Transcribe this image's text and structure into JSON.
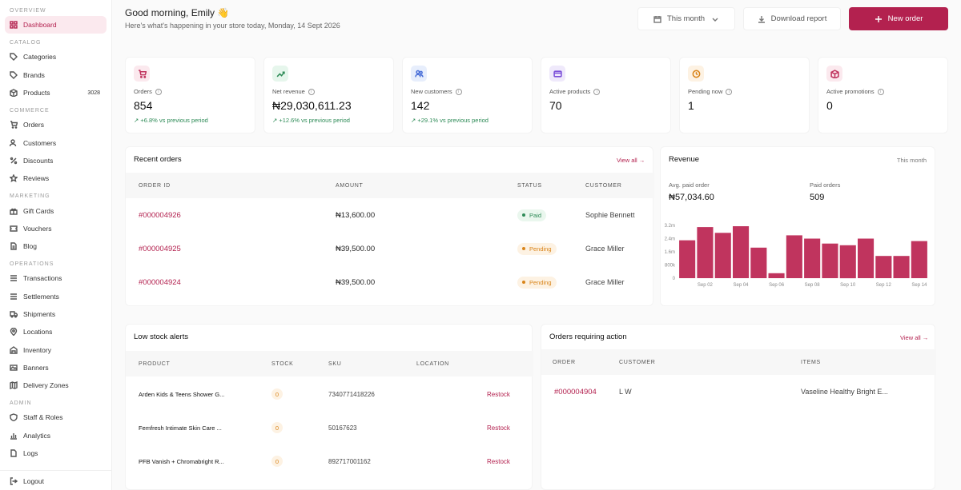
{
  "sidebar": {
    "sections": {
      "overview": "OVERVIEW",
      "catalog": "CATALOG",
      "commerce": "COMMERCE",
      "marketing": "MARKETING",
      "operations": "OPERATIONS",
      "admin": "ADMIN"
    },
    "items": {
      "dashboard": "Dashboard",
      "categories": "Categories",
      "brands": "Brands",
      "products": "Products",
      "products_count": "3028",
      "orders": "Orders",
      "customers": "Customers",
      "discounts": "Discounts",
      "reviews": "Reviews",
      "gift_cards": "Gift Cards",
      "vouchers": "Vouchers",
      "blog": "Blog",
      "transactions": "Transactions",
      "settlements": "Settlements",
      "shipments": "Shipments",
      "locations": "Locations",
      "inventory": "Inventory",
      "banners": "Banners",
      "delivery_zones": "Delivery Zones",
      "staff_roles": "Staff & Roles",
      "analytics": "Analytics",
      "logs": "Logs",
      "logout": "Logout"
    }
  },
  "header": {
    "greeting": "Good morning, Emily 👋",
    "subtitle": "Here's what's happening in your store today, Monday, 14 Sept 2026",
    "period_button": "This month",
    "download_button": "Download report",
    "new_order_button": "New order"
  },
  "stats": [
    {
      "label": "Orders",
      "value": "854",
      "delta": "+6.8% vs previous period",
      "icon": "cart-icon",
      "color": "#c0345e",
      "bg": "#fbe9ee"
    },
    {
      "label": "Net revenue",
      "value": "₦29,030,611.23",
      "delta": "+12.6% vs previous period",
      "icon": "trend-up-icon",
      "color": "#2e8b57",
      "bg": "#e6f6ec"
    },
    {
      "label": "New customers",
      "value": "142",
      "delta": "+29.1% vs previous period",
      "icon": "users-icon",
      "color": "#4a6fd8",
      "bg": "#e7eefc"
    },
    {
      "label": "Active products",
      "value": "70",
      "delta": "",
      "icon": "card-icon",
      "color": "#7b4fd8",
      "bg": "#efe9fb"
    },
    {
      "label": "Pending now",
      "value": "1",
      "delta": "",
      "icon": "clock-icon",
      "color": "#d9841a",
      "bg": "#fdf2e3"
    },
    {
      "label": "Active promotions",
      "value": "0",
      "delta": "",
      "icon": "box-icon",
      "color": "#c0345e",
      "bg": "#fbe9ee"
    }
  ],
  "recent_orders": {
    "title": "Recent orders",
    "view_all": "View all →",
    "columns": [
      "ORDER ID",
      "AMOUNT",
      "STATUS",
      "CUSTOMER"
    ],
    "rows": [
      {
        "id": "#000004926",
        "amount": "₦13,600.00",
        "status": "Paid",
        "customer": "Sophie Bennett"
      },
      {
        "id": "#000004925",
        "amount": "₦39,500.00",
        "status": "Pending",
        "customer": "Grace Miller"
      },
      {
        "id": "#000004924",
        "amount": "₦39,500.00",
        "status": "Pending",
        "customer": "Grace Miller"
      }
    ]
  },
  "revenue": {
    "title": "Revenue",
    "period": "This month",
    "avg_label": "Avg. paid order",
    "avg_value": "₦57,034.60",
    "paid_label": "Paid orders",
    "paid_value": "509"
  },
  "chart_data": {
    "type": "bar",
    "ytick_labels": [
      "3.2m",
      "2.4m",
      "1.6m",
      "800k",
      "0"
    ],
    "ylim": [
      0,
      3200000
    ],
    "categories": [
      "Sep 01",
      "Sep 02",
      "Sep 03",
      "Sep 04",
      "Sep 05",
      "Sep 06",
      "Sep 07",
      "Sep 08",
      "Sep 09",
      "Sep 10",
      "Sep 11",
      "Sep 12",
      "Sep 13",
      "Sep 14"
    ],
    "xtick_labels": [
      "Sep 02",
      "Sep 04",
      "Sep 06",
      "Sep 08",
      "Sep 10",
      "Sep 12",
      "Sep 14"
    ],
    "values": [
      2300000,
      3100000,
      2750000,
      3150000,
      1850000,
      300000,
      2600000,
      2400000,
      2100000,
      2000000,
      2400000,
      1350000,
      1350000,
      2250000
    ],
    "color": "#c0345e",
    "grid": false
  },
  "low_stock": {
    "title": "Low stock alerts",
    "columns": [
      "PRODUCT",
      "STOCK",
      "SKU",
      "LOCATION"
    ],
    "rows": [
      {
        "product": "Arden Kids & Teens Shower G...",
        "stock": "0",
        "sku": "7340771418226",
        "action": "Restock"
      },
      {
        "product": "Femfresh Intimate Skin Care ...",
        "stock": "0",
        "sku": "50167623",
        "action": "Restock"
      },
      {
        "product": "PFB Vanish + Chromabright R...",
        "stock": "0",
        "sku": "892717001162",
        "action": "Restock"
      }
    ]
  },
  "action_orders": {
    "title": "Orders requiring action",
    "view_all": "View all →",
    "columns": [
      "ORDER",
      "CUSTOMER",
      "ITEMS"
    ],
    "rows": [
      {
        "order": "#000004904",
        "customer": "L W",
        "items": "Vaseline Healthy Bright E..."
      }
    ]
  }
}
